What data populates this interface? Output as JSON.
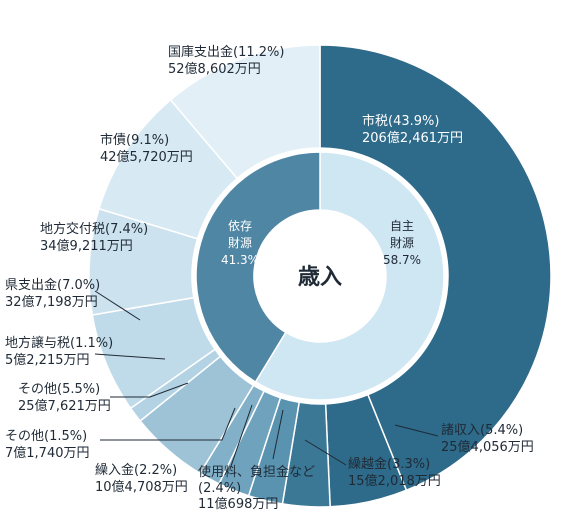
{
  "chart_data": {
    "type": "pie",
    "center_label": "歳入",
    "inner": [
      {
        "label_lines": [
          "自主",
          "財源",
          "58.7%"
        ],
        "value": 58.7,
        "color": "#cfe6f3",
        "text_color": "#1f2a36"
      },
      {
        "label_lines": [
          "依存",
          "財源",
          "41.3%"
        ],
        "value": 41.3,
        "color": "#4f86a4",
        "text_color": "#ffffff"
      }
    ],
    "outer": [
      {
        "name": "市税",
        "pct_text": "(43.9%)",
        "amount": "206億2,461万円",
        "value": 43.9,
        "color": "#2e6a89"
      },
      {
        "name": "諸収入",
        "pct_text": "(5.4%)",
        "amount": "25億4,056万円",
        "value": 5.4,
        "color": "#2e6a89"
      },
      {
        "name": "繰越金",
        "pct_text": "(3.3%)",
        "amount": "15億2,018万円",
        "value": 3.3,
        "color": "#3a7896"
      },
      {
        "name": "使用料、負担金など",
        "pct_text": "(2.4%)",
        "amount": "11億698万円",
        "value": 2.4,
        "color": "#5a93b0"
      },
      {
        "name": "繰入金",
        "pct_text": "(2.2%)",
        "amount": "10億4,708万円",
        "value": 2.2,
        "color": "#6ea2bd"
      },
      {
        "name": "その他",
        "pct_text": "(1.5%)",
        "amount": "7億1,740万円",
        "value": 1.5,
        "color": "#82b0c8"
      },
      {
        "name": "その他",
        "pct_text": "(5.5%)",
        "amount": "25億7,621万円",
        "value": 5.5,
        "color": "#9ec3d7"
      },
      {
        "name": "地方譲与税",
        "pct_text": "(1.1%)",
        "amount": "5億2,215万円",
        "value": 1.1,
        "color": "#b3d3e4"
      },
      {
        "name": "県支出金",
        "pct_text": "(7.0%)",
        "amount": "32億7,198万円",
        "value": 7.0,
        "color": "#bfdae9"
      },
      {
        "name": "地方交付税",
        "pct_text": "(7.4%)",
        "amount": "34億9,211万円",
        "value": 7.4,
        "color": "#cce2ee"
      },
      {
        "name": "市債",
        "pct_text": "(9.1%)",
        "amount": "42億5,720万円",
        "value": 9.1,
        "color": "#d7e9f3"
      },
      {
        "name": "国庫支出金",
        "pct_text": "(11.2%)",
        "amount": "52億8,602万円",
        "value": 11.2,
        "color": "#e2eff7"
      }
    ]
  }
}
